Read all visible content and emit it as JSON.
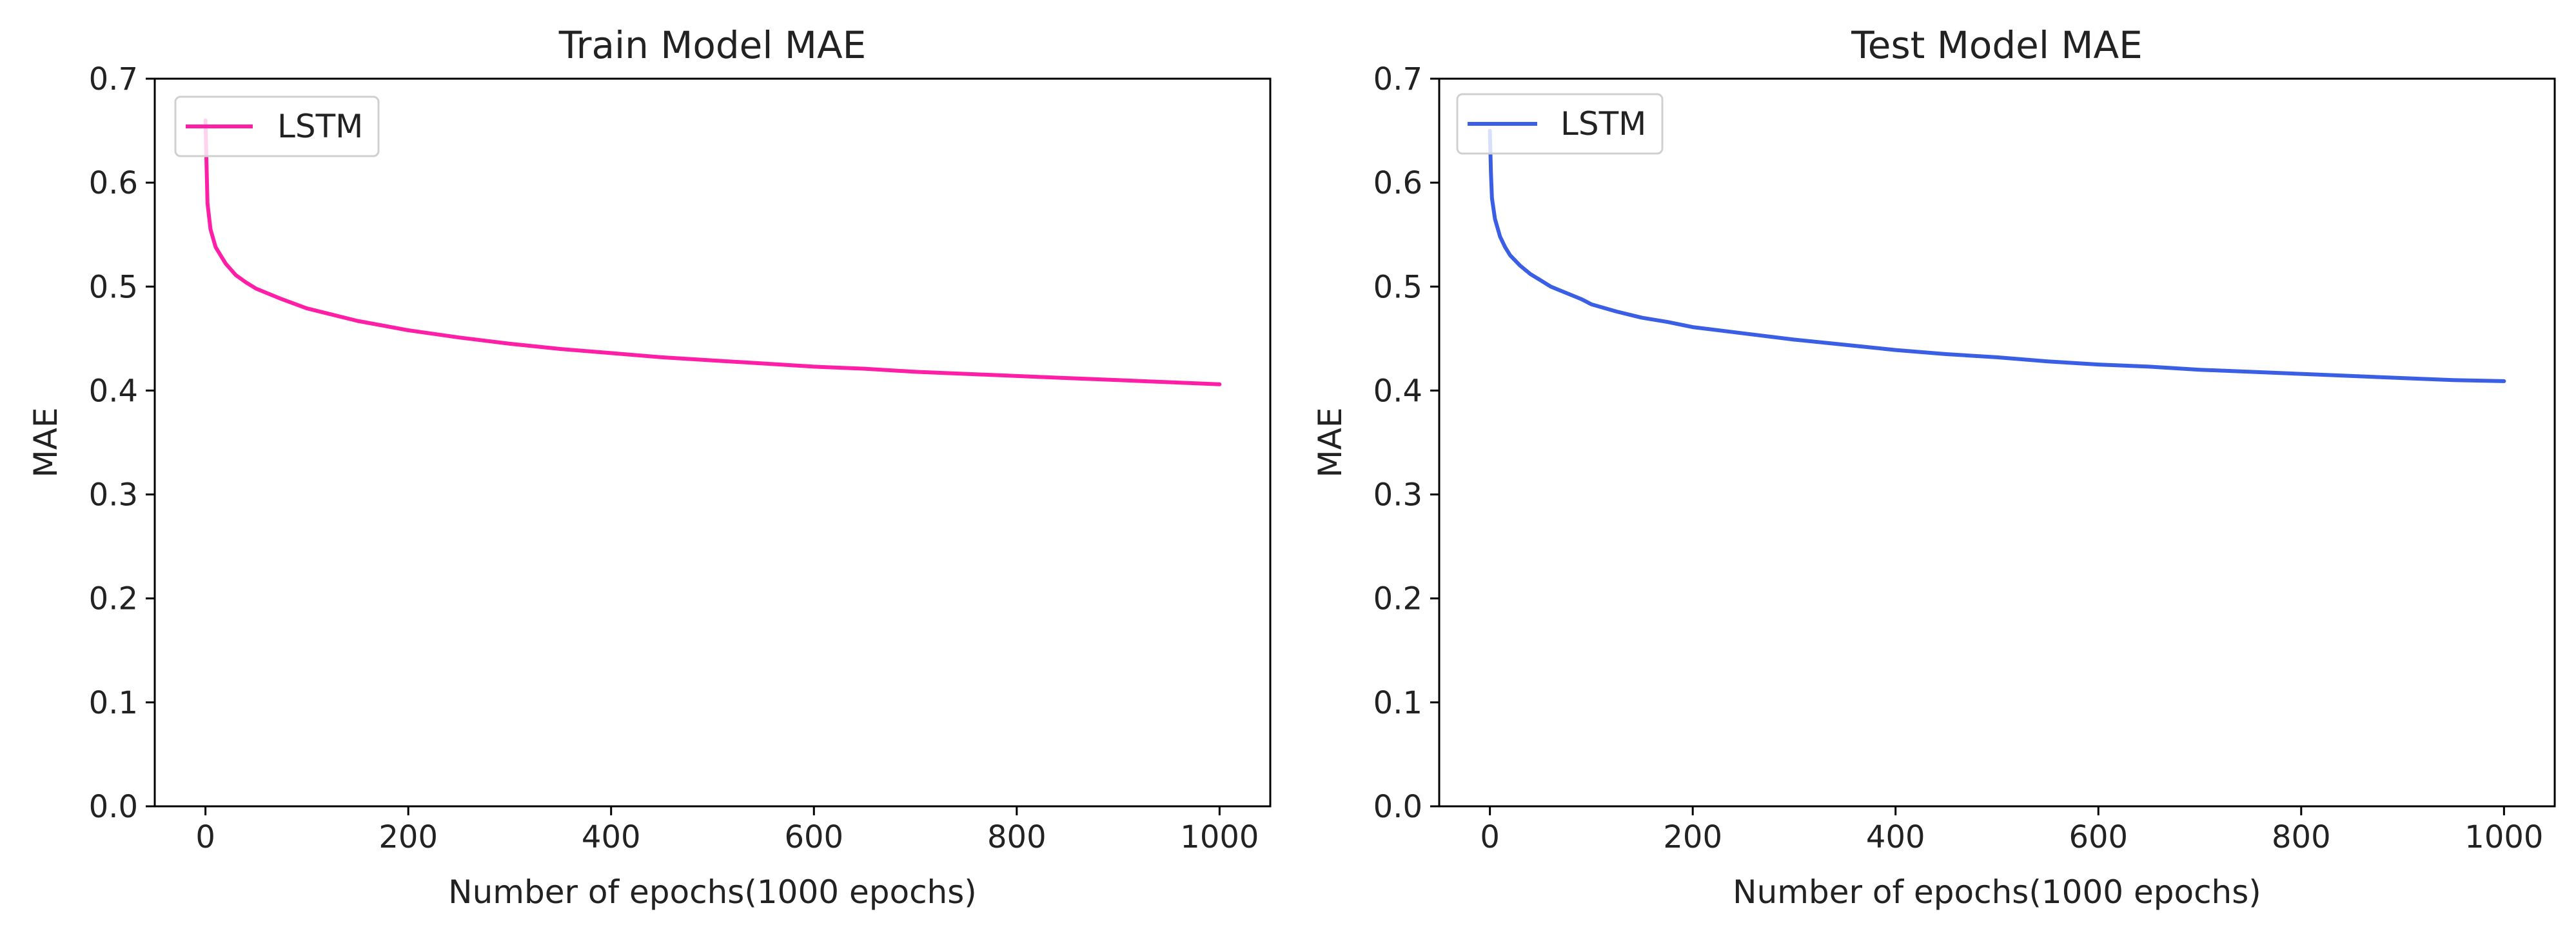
{
  "figure": {
    "charts": [
      {
        "title": "Train Model MAE",
        "xlabel": "Number of epochs(1000 epochs)",
        "ylabel": "MAE",
        "series_name": "LSTM"
      },
      {
        "title": "Test Model MAE",
        "xlabel": "Number of epochs(1000 epochs)",
        "ylabel": "MAE",
        "series_name": "LSTM"
      }
    ]
  },
  "chart_data": [
    {
      "type": "line",
      "title": "Train Model MAE",
      "xlabel": "Number of epochs(1000 epochs)",
      "ylabel": "MAE",
      "xlim": [
        -50,
        1050
      ],
      "ylim": [
        0.0,
        0.7
      ],
      "xticks": [
        0,
        200,
        400,
        600,
        800,
        1000
      ],
      "yticks": [
        0.0,
        0.1,
        0.2,
        0.3,
        0.4,
        0.5,
        0.6,
        0.7
      ],
      "xtick_labels": [
        "0",
        "200",
        "400",
        "600",
        "800",
        "1000"
      ],
      "ytick_labels": [
        "0.0",
        "0.1",
        "0.2",
        "0.3",
        "0.4",
        "0.5",
        "0.6",
        "0.7"
      ],
      "grid": false,
      "legend": "top-left",
      "series": [
        {
          "name": "LSTM",
          "color": "#ff1fa6",
          "x": [
            0,
            1,
            2,
            5,
            10,
            15,
            20,
            30,
            40,
            50,
            75,
            100,
            150,
            200,
            250,
            300,
            350,
            400,
            450,
            500,
            550,
            600,
            650,
            700,
            750,
            800,
            850,
            900,
            950,
            1000
          ],
          "y": [
            0.66,
            0.62,
            0.58,
            0.555,
            0.538,
            0.53,
            0.522,
            0.511,
            0.504,
            0.498,
            0.488,
            0.479,
            0.467,
            0.458,
            0.451,
            0.445,
            0.44,
            0.436,
            0.432,
            0.429,
            0.426,
            0.423,
            0.421,
            0.418,
            0.416,
            0.414,
            0.412,
            0.41,
            0.408,
            0.406
          ]
        }
      ]
    },
    {
      "type": "line",
      "title": "Test Model MAE",
      "xlabel": "Number of epochs(1000 epochs)",
      "ylabel": "MAE",
      "xlim": [
        -50,
        1050
      ],
      "ylim": [
        0.0,
        0.7
      ],
      "xticks": [
        0,
        200,
        400,
        600,
        800,
        1000
      ],
      "yticks": [
        0.0,
        0.1,
        0.2,
        0.3,
        0.4,
        0.5,
        0.6,
        0.7
      ],
      "xtick_labels": [
        "0",
        "200",
        "400",
        "600",
        "800",
        "1000"
      ],
      "ytick_labels": [
        "0.0",
        "0.1",
        "0.2",
        "0.3",
        "0.4",
        "0.5",
        "0.6",
        "0.7"
      ],
      "grid": false,
      "legend": "top-left",
      "series": [
        {
          "name": "LSTM",
          "color": "#3a5fe5",
          "x": [
            0,
            1,
            2,
            5,
            10,
            15,
            20,
            30,
            40,
            50,
            60,
            75,
            90,
            100,
            125,
            150,
            175,
            200,
            250,
            300,
            350,
            400,
            450,
            500,
            550,
            600,
            650,
            700,
            750,
            800,
            850,
            900,
            950,
            1000
          ],
          "y": [
            0.65,
            0.61,
            0.585,
            0.565,
            0.548,
            0.538,
            0.53,
            0.52,
            0.512,
            0.506,
            0.5,
            0.494,
            0.488,
            0.483,
            0.476,
            0.47,
            0.466,
            0.461,
            0.455,
            0.449,
            0.444,
            0.439,
            0.435,
            0.432,
            0.428,
            0.425,
            0.423,
            0.42,
            0.418,
            0.416,
            0.414,
            0.412,
            0.41,
            0.409
          ]
        }
      ]
    }
  ]
}
